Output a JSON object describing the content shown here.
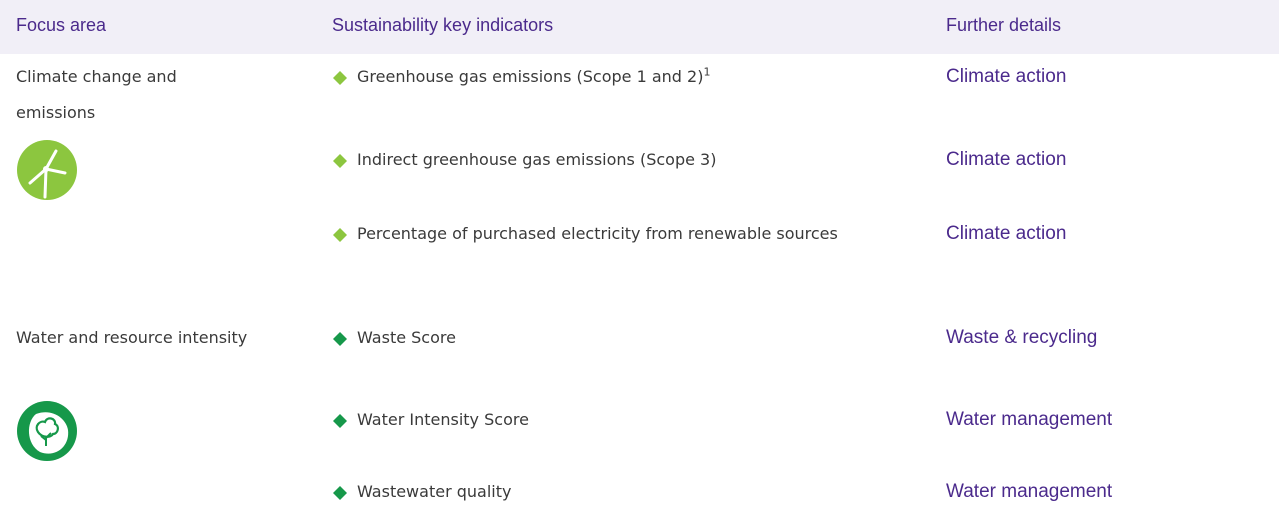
{
  "header": [
    "Focus area",
    "Sustainability key indicators",
    "Further details"
  ],
  "groups": [
    {
      "focus": "Climate change and emissions",
      "rows": [
        {
          "indicator": "Greenhouse gas emissions (Scope 1 and 2)",
          "note": "1",
          "details": "Climate action"
        },
        {
          "indicator": "Indirect greenhouse gas emissions (Scope 3)",
          "details": "Climate action"
        },
        {
          "indicator": "Percentage of purchased electricity from renewable sources",
          "details": "Climate action"
        }
      ]
    },
    {
      "focus": "Water and resource intensity",
      "rows": [
        {
          "indicator": "Waste Score",
          "details": "Waste & recycling"
        },
        {
          "indicator": "Water Intensity Score",
          "details": "Water management"
        },
        {
          "indicator": "Wastewater quality",
          "details": "Water management"
        }
      ]
    }
  ]
}
